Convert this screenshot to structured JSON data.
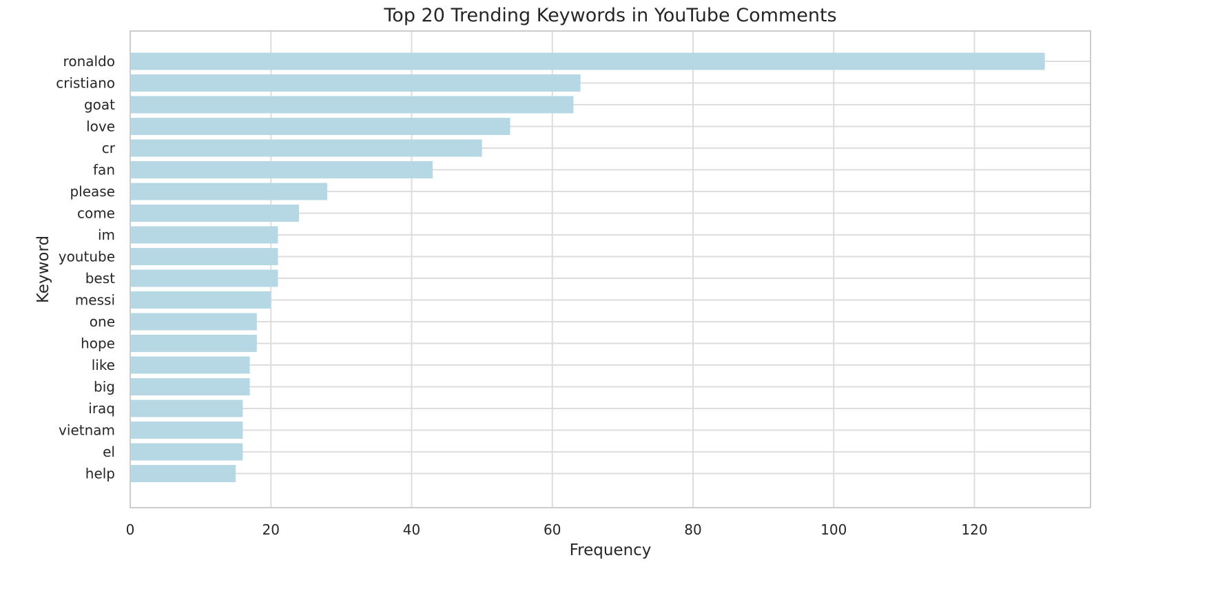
{
  "chart_data": {
    "type": "bar",
    "orientation": "horizontal",
    "title": "Top 20 Trending Keywords in YouTube Comments",
    "xlabel": "Frequency",
    "ylabel": "Keyword",
    "categories": [
      "ronaldo",
      "cristiano",
      "goat",
      "love",
      "cr",
      "fan",
      "please",
      "come",
      "im",
      "youtube",
      "best",
      "messi",
      "one",
      "hope",
      "like",
      "big",
      "iraq",
      "vietnam",
      "el",
      "help"
    ],
    "values": [
      130,
      64,
      63,
      54,
      50,
      43,
      28,
      24,
      21,
      21,
      21,
      20,
      18,
      18,
      17,
      17,
      16,
      16,
      16,
      15
    ],
    "xlim": [
      0,
      136.5
    ],
    "xticks": [
      0,
      20,
      40,
      60,
      80,
      100,
      120
    ],
    "grid": true,
    "bar_color": "#b6d7e4",
    "grid_color": "#dddddd",
    "spine_color": "#cccccc"
  }
}
